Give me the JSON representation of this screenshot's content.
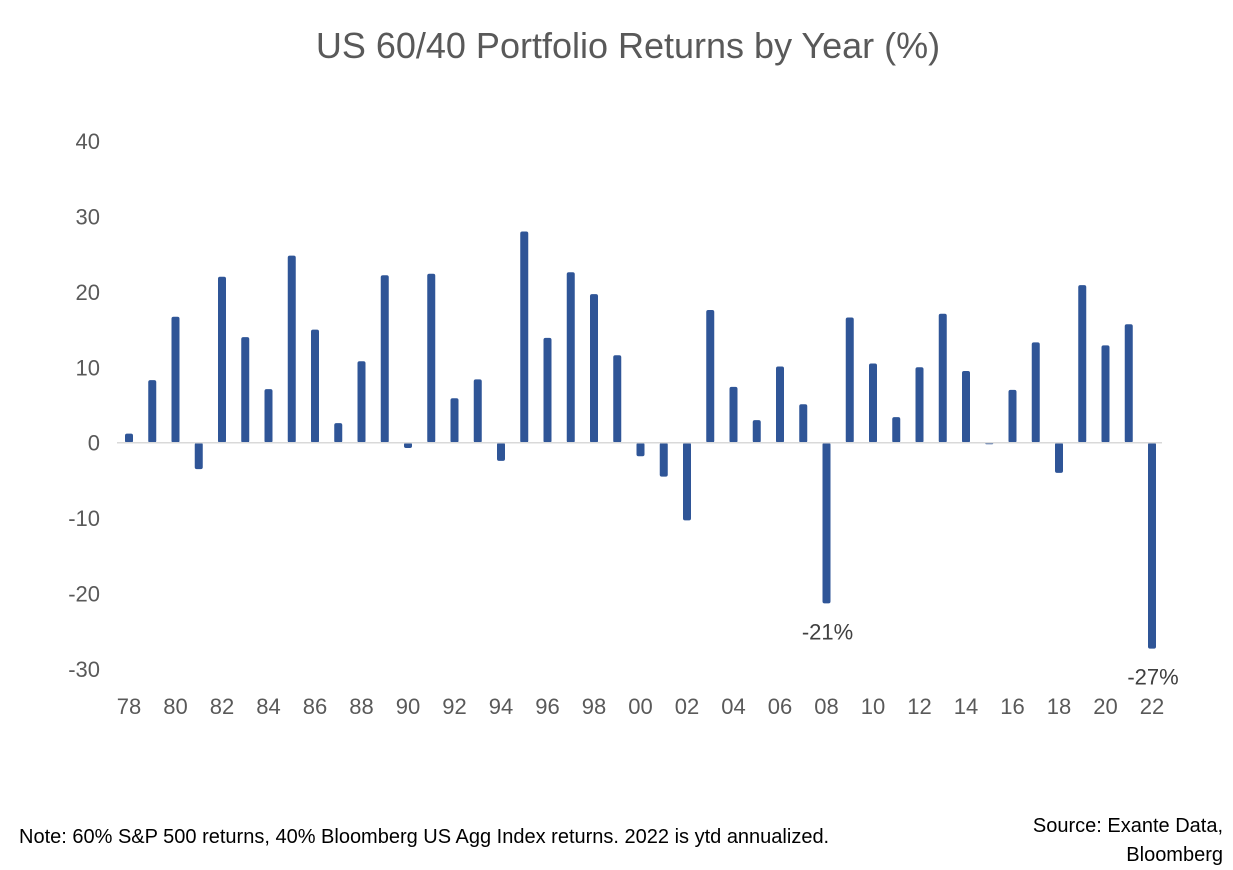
{
  "chart_data": {
    "type": "bar",
    "title": "US 60/40 Portfolio Returns by Year (%)",
    "xlabel": "",
    "ylabel": "",
    "ylim": [
      -30,
      40
    ],
    "yticks": [
      "40",
      "30",
      "20",
      "10",
      "0",
      "-10",
      "-20",
      "-30"
    ],
    "categories": [
      "78",
      "79",
      "80",
      "81",
      "82",
      "83",
      "84",
      "85",
      "86",
      "87",
      "88",
      "89",
      "90",
      "91",
      "92",
      "93",
      "94",
      "95",
      "96",
      "97",
      "98",
      "99",
      "00",
      "01",
      "02",
      "03",
      "04",
      "05",
      "06",
      "07",
      "08",
      "09",
      "10",
      "11",
      "12",
      "13",
      "14",
      "15",
      "16",
      "17",
      "18",
      "19",
      "20",
      "21",
      "22"
    ],
    "xtick_labels": [
      "78",
      "",
      "80",
      "",
      "82",
      "",
      "84",
      "",
      "86",
      "",
      "88",
      "",
      "90",
      "",
      "92",
      "",
      "94",
      "",
      "96",
      "",
      "98",
      "",
      "00",
      "",
      "02",
      "",
      "04",
      "",
      "06",
      "",
      "08",
      "",
      "10",
      "",
      "12",
      "",
      "14",
      "",
      "16",
      "",
      "18",
      "",
      "20",
      "",
      "22"
    ],
    "values": [
      1.2,
      8.3,
      16.7,
      -3.5,
      22.0,
      14.0,
      7.1,
      24.8,
      15.0,
      2.6,
      10.8,
      22.2,
      -0.7,
      22.4,
      5.9,
      8.4,
      -2.4,
      28.0,
      13.9,
      22.6,
      19.7,
      11.6,
      -1.8,
      -4.5,
      -10.3,
      17.6,
      7.4,
      3.0,
      10.1,
      5.1,
      -21.3,
      16.6,
      10.5,
      3.4,
      10.0,
      17.1,
      9.5,
      -0.2,
      7.0,
      13.3,
      -4.0,
      20.9,
      12.9,
      15.7,
      -27.3
    ],
    "data_labels": [
      {
        "category": "08",
        "text": "-21%"
      },
      {
        "category": "22",
        "text": "-27%"
      }
    ],
    "grid": false,
    "legend": "none",
    "colors": {
      "bar": "#2f5597",
      "axis": "#d9d9d9",
      "text": "#595959"
    }
  },
  "footer": {
    "note": "Note: 60% S&P 500 returns, 40% Bloomberg US Agg Index returns. 2022 is ytd annualized.",
    "source_line1": "Source: Exante Data,",
    "source_line2": "Bloomberg"
  }
}
